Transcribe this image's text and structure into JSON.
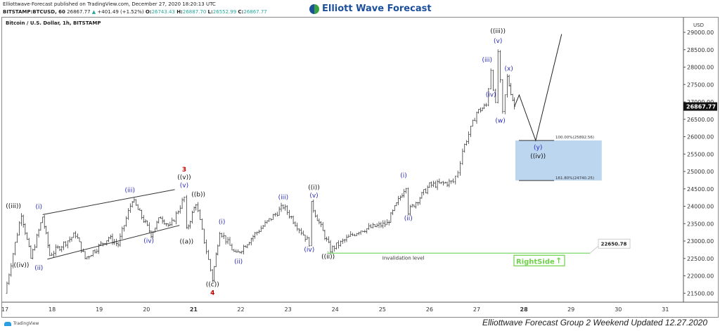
{
  "header": {
    "line1": "Elliottwave-Forecast published on TradingView.com, December 27, 2020 18:20:13 UTC",
    "symbol": "BITSTAMP:BTCUSD, 60",
    "last": "26867.77",
    "change": "+401.49 (+1.52%)",
    "o": "26743.43",
    "h": "26887.70",
    "l": "26552.99",
    "c": "26867.77"
  },
  "logo": "Elliott Wave Forecast",
  "chart_title": "Bitcoin / U.S. Dollar, 1h, BITSTAMP",
  "currency": "USD",
  "footer": "Elliottwave Forecast Group 2 Weekend Updated 12.27.2020",
  "tv_brand": "TradingView",
  "chart_data": {
    "type": "candlestick",
    "xlim": [
      17,
      31.35
    ],
    "ylim": [
      21150,
      29350
    ],
    "x_ticks": [
      "17",
      "18",
      "19",
      "20",
      "21",
      "22",
      "23",
      "24",
      "25",
      "26",
      "27",
      "28",
      "29",
      "30",
      "31"
    ],
    "y_ticks": [
      "21500.00",
      "22000.00",
      "22500.00",
      "23000.00",
      "23500.00",
      "24000.00",
      "24500.00",
      "25000.00",
      "25500.00",
      "26000.00",
      "26500.00",
      "27000.00",
      "27500.00",
      "28000.00",
      "28500.00",
      "29000.00"
    ],
    "last_price": "26867.77",
    "price_path": [
      [
        17.0,
        21500
      ],
      [
        17.35,
        23800
      ],
      [
        17.55,
        22500
      ],
      [
        17.8,
        23700
      ],
      [
        17.95,
        22600
      ],
      [
        18.5,
        23200
      ],
      [
        18.7,
        22500
      ],
      [
        19.2,
        23100
      ],
      [
        19.4,
        22900
      ],
      [
        19.7,
        24200
      ],
      [
        20.1,
        23200
      ],
      [
        20.3,
        23700
      ],
      [
        20.5,
        23400
      ],
      [
        20.8,
        24250
      ],
      [
        20.85,
        23300
      ],
      [
        21.05,
        24100
      ],
      [
        21.4,
        21900
      ],
      [
        21.55,
        23300
      ],
      [
        21.9,
        22600
      ],
      [
        22.3,
        23200
      ],
      [
        22.9,
        24000
      ],
      [
        23.45,
        22950
      ],
      [
        23.5,
        24050
      ],
      [
        23.9,
        22750
      ],
      [
        24.5,
        23300
      ],
      [
        25.1,
        23500
      ],
      [
        25.5,
        24600
      ],
      [
        25.55,
        23850
      ],
      [
        26.0,
        24600
      ],
      [
        26.5,
        24700
      ],
      [
        26.6,
        25000
      ],
      [
        26.7,
        25600
      ],
      [
        27.0,
        26700
      ],
      [
        27.2,
        26900
      ],
      [
        27.3,
        27950
      ],
      [
        27.4,
        26900
      ],
      [
        27.45,
        28450
      ],
      [
        27.55,
        26650
      ],
      [
        27.65,
        27700
      ],
      [
        27.8,
        26868
      ]
    ],
    "projection": [
      [
        27.8,
        26868
      ],
      [
        27.9,
        27200
      ],
      [
        28.25,
        25890
      ],
      [
        28.8,
        28950
      ]
    ],
    "target_box": {
      "from": 27.82,
      "to": 29.65,
      "top": 25892.56,
      "bottom": 24740.25,
      "top_label": "100.00%(25892.56)",
      "bottom_label": "161.80%(24740.25)",
      "color": "#bcd6f0"
    },
    "invalidation": {
      "from": 23.85,
      "to": 29.4,
      "price": 22650.78,
      "label": "Invalidation level",
      "value_label": "22650.78",
      "color": "#7ddc6a"
    },
    "trendlines": [
      [
        [
          17.8,
          23760
        ],
        [
          20.6,
          24480
        ]
      ],
      [
        [
          17.9,
          22480
        ],
        [
          20.7,
          23450
        ]
      ]
    ],
    "annotations": [
      {
        "t": "((iii))",
        "x": 17.18,
        "p": 23950,
        "c": "#111"
      },
      {
        "t": "((iv))",
        "x": 17.35,
        "p": 22250,
        "c": "#111"
      },
      {
        "t": "(i)",
        "x": 17.72,
        "p": 23930,
        "c": "#2a2ab8"
      },
      {
        "t": "(ii)",
        "x": 17.72,
        "p": 22170,
        "c": "#2a2ab8"
      },
      {
        "t": "(iii)",
        "x": 19.65,
        "p": 24400,
        "c": "#2a2ab8"
      },
      {
        "t": "(iv)",
        "x": 20.05,
        "p": 22950,
        "c": "#2a2ab8"
      },
      {
        "t": "3",
        "x": 20.8,
        "p": 25000,
        "c": "#c00000"
      },
      {
        "t": "((v))",
        "x": 20.8,
        "p": 24780,
        "c": "#111"
      },
      {
        "t": "(v)",
        "x": 20.8,
        "p": 24550,
        "c": "#2a2ab8"
      },
      {
        "t": "((a))",
        "x": 20.85,
        "p": 22930,
        "c": "#111"
      },
      {
        "t": "((b))",
        "x": 21.1,
        "p": 24280,
        "c": "#111"
      },
      {
        "t": "((c))",
        "x": 21.4,
        "p": 21700,
        "c": "#111"
      },
      {
        "t": "4",
        "x": 21.4,
        "p": 21450,
        "c": "#c00000"
      },
      {
        "t": "(i)",
        "x": 21.6,
        "p": 23500,
        "c": "#2a2ab8"
      },
      {
        "t": "(ii)",
        "x": 21.95,
        "p": 22350,
        "c": "#2a2ab8"
      },
      {
        "t": "(iii)",
        "x": 22.9,
        "p": 24200,
        "c": "#2a2ab8"
      },
      {
        "t": "(iv)",
        "x": 23.45,
        "p": 22700,
        "c": "#2a2ab8"
      },
      {
        "t": "((i))",
        "x": 23.55,
        "p": 24480,
        "c": "#111"
      },
      {
        "t": "(v)",
        "x": 23.55,
        "p": 24250,
        "c": "#2a2ab8"
      },
      {
        "t": "((ii))",
        "x": 23.85,
        "p": 22500,
        "c": "#111"
      },
      {
        "t": "(i)",
        "x": 25.45,
        "p": 24830,
        "c": "#2a2ab8"
      },
      {
        "t": "(ii)",
        "x": 25.55,
        "p": 23600,
        "c": "#2a2ab8"
      },
      {
        "t": "((iii))",
        "x": 27.45,
        "p": 28980,
        "c": "#111"
      },
      {
        "t": "(v)",
        "x": 27.45,
        "p": 28700,
        "c": "#2a2ab8"
      },
      {
        "t": "(iii)",
        "x": 27.22,
        "p": 28150,
        "c": "#2a2ab8"
      },
      {
        "t": "(x)",
        "x": 27.68,
        "p": 27900,
        "c": "#2a2ab8"
      },
      {
        "t": "(iv)",
        "x": 27.3,
        "p": 27150,
        "c": "#2a2ab8"
      },
      {
        "t": "(w)",
        "x": 27.5,
        "p": 26400,
        "c": "#2a2ab8"
      },
      {
        "t": "(y)",
        "x": 28.3,
        "p": 25640,
        "c": "#2a2ab8"
      },
      {
        "t": "((iv))",
        "x": 28.3,
        "p": 25380,
        "c": "#111"
      }
    ]
  },
  "rightside": {
    "label": "RightSide",
    "color": "#6fd14a"
  }
}
